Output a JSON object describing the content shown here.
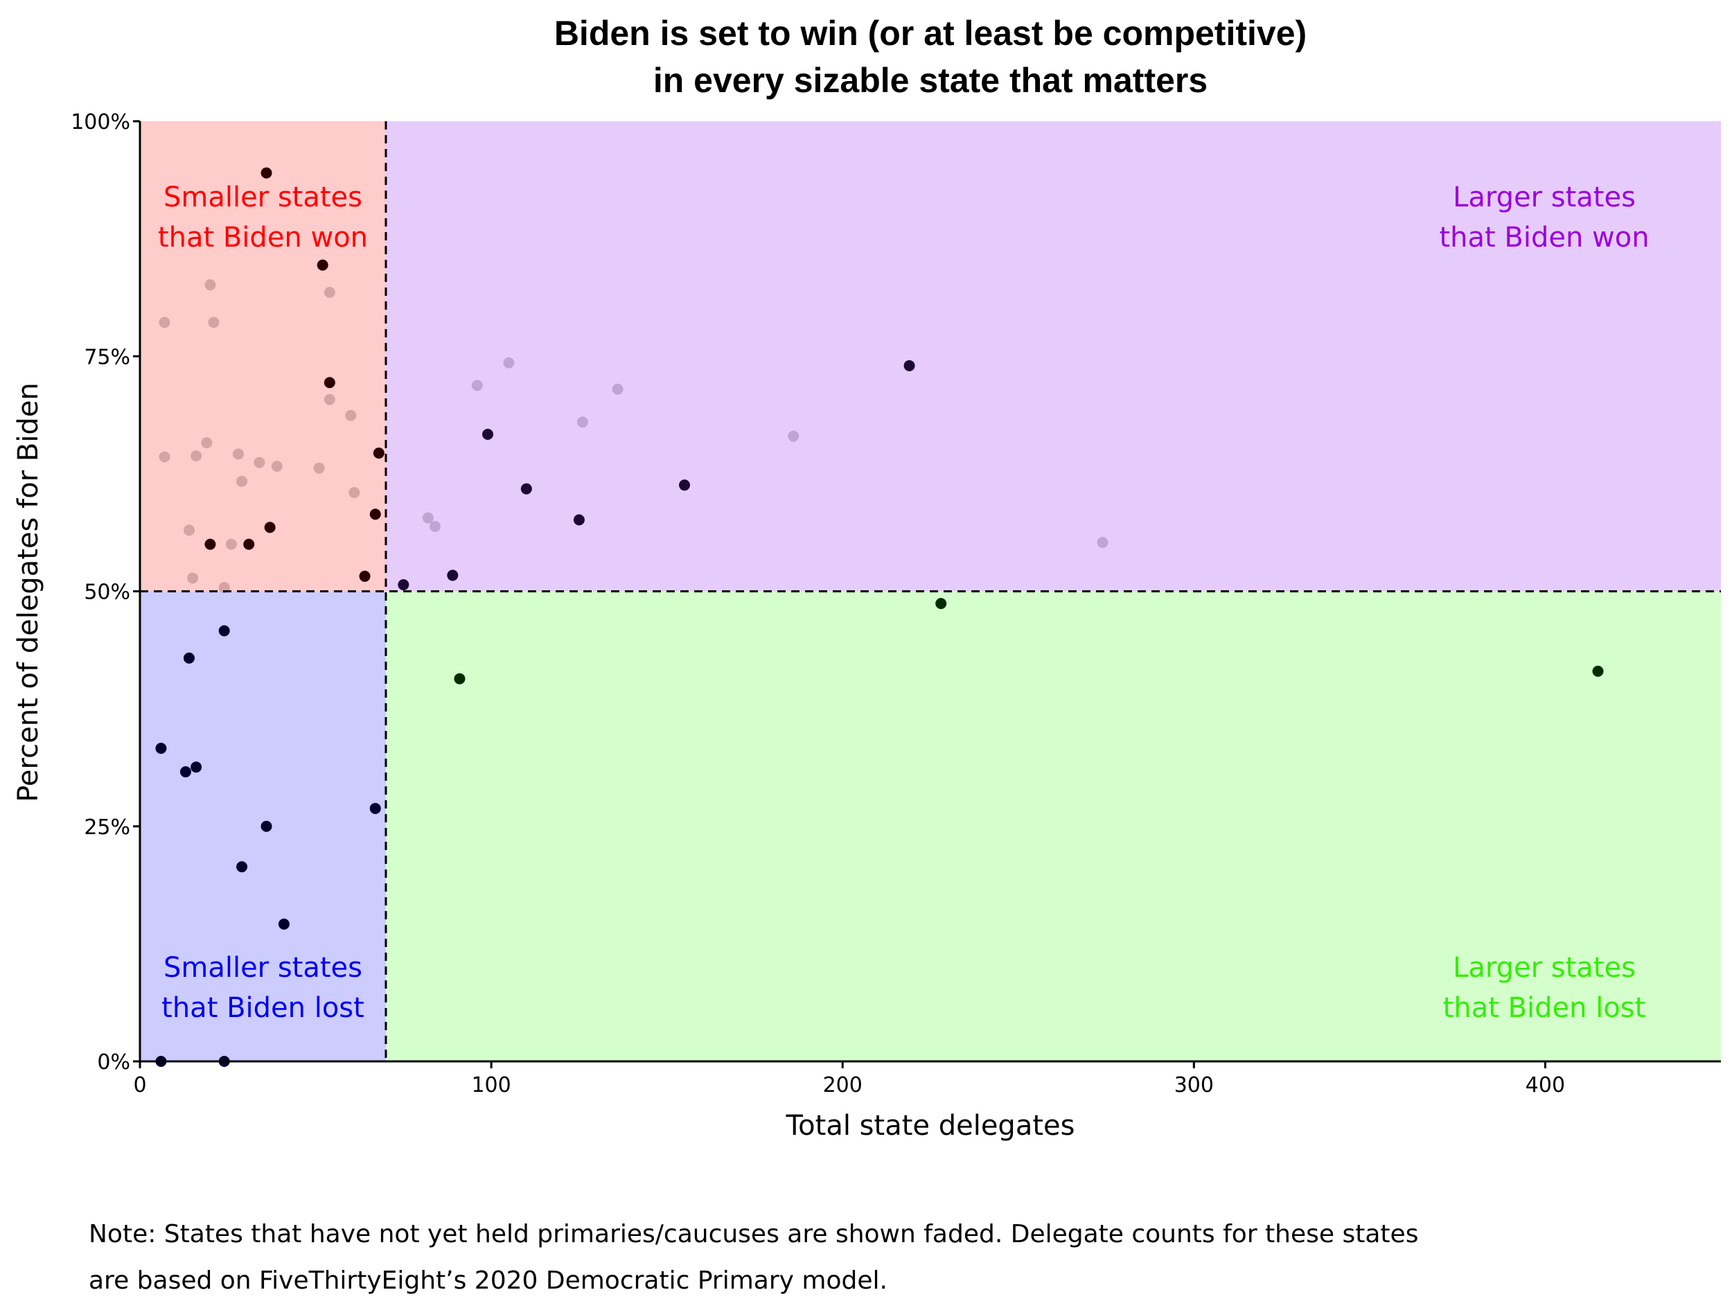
{
  "chart_data": {
    "type": "scatter",
    "title_lines": [
      "Biden is set to win (or at least be competitive)",
      "in every sizable state that matters"
    ],
    "xlabel": "Total state delegates",
    "ylabel": "Percent of delegates for Biden",
    "xlim": [
      0,
      450
    ],
    "ylim": [
      0,
      100
    ],
    "x_ticks": [
      0,
      100,
      200,
      300,
      400
    ],
    "x_tick_labels": [
      "0",
      "100",
      "200",
      "300",
      "400"
    ],
    "y_ticks": [
      0,
      25,
      50,
      75,
      100
    ],
    "y_tick_labels": [
      "0%",
      "25%",
      "50%",
      "75%",
      "100%"
    ],
    "grid": false,
    "thresholds": {
      "x": 70,
      "y": 50
    },
    "quadrants": [
      {
        "name": "smaller-won",
        "label_lines": [
          "Smaller states",
          "that Biden won"
        ],
        "fill": "#ffcccc",
        "text_color": "#ff0000"
      },
      {
        "name": "larger-won",
        "label_lines": [
          "Larger states",
          "that Biden won"
        ],
        "fill": "#e6ccfa",
        "text_color": "#9900dd"
      },
      {
        "name": "smaller-lost",
        "label_lines": [
          "Smaller states",
          "that Biden lost"
        ],
        "fill": "#ccccff",
        "text_color": "#0000ee"
      },
      {
        "name": "larger-lost",
        "label_lines": [
          "Larger states",
          "that Biden lost"
        ],
        "fill": "#d4ffcc",
        "text_color": "#33ee00"
      }
    ],
    "series": [
      {
        "status": "held",
        "points": [
          {
            "x": 36,
            "y": 94.5
          },
          {
            "x": 52,
            "y": 84.7
          },
          {
            "x": 54,
            "y": 72.2
          },
          {
            "x": 68,
            "y": 64.7
          },
          {
            "x": 67,
            "y": 58.2
          },
          {
            "x": 37,
            "y": 56.8
          },
          {
            "x": 20,
            "y": 55.0
          },
          {
            "x": 31,
            "y": 55.0
          },
          {
            "x": 64,
            "y": 51.6
          },
          {
            "x": 219,
            "y": 74.0
          },
          {
            "x": 99,
            "y": 66.7
          },
          {
            "x": 155,
            "y": 61.3
          },
          {
            "x": 110,
            "y": 60.9
          },
          {
            "x": 125,
            "y": 57.6
          },
          {
            "x": 89,
            "y": 51.7
          },
          {
            "x": 75,
            "y": 50.7
          },
          {
            "x": 228,
            "y": 48.7
          },
          {
            "x": 91,
            "y": 40.7
          },
          {
            "x": 415,
            "y": 41.5
          },
          {
            "x": 24,
            "y": 45.8
          },
          {
            "x": 14,
            "y": 42.9
          },
          {
            "x": 6,
            "y": 33.3
          },
          {
            "x": 16,
            "y": 31.3
          },
          {
            "x": 13,
            "y": 30.8
          },
          {
            "x": 67,
            "y": 26.9
          },
          {
            "x": 36,
            "y": 25.0
          },
          {
            "x": 29,
            "y": 20.7
          },
          {
            "x": 41,
            "y": 14.6
          },
          {
            "x": 6,
            "y": 0.0
          },
          {
            "x": 24,
            "y": 0.0
          }
        ]
      },
      {
        "status": "not yet held",
        "points": [
          {
            "x": 7,
            "y": 78.6
          },
          {
            "x": 20,
            "y": 82.6
          },
          {
            "x": 21,
            "y": 78.6
          },
          {
            "x": 54,
            "y": 81.8
          },
          {
            "x": 54,
            "y": 70.4
          },
          {
            "x": 60,
            "y": 68.7
          },
          {
            "x": 7,
            "y": 64.3
          },
          {
            "x": 16,
            "y": 64.4
          },
          {
            "x": 19,
            "y": 65.8
          },
          {
            "x": 28,
            "y": 64.6
          },
          {
            "x": 34,
            "y": 63.7
          },
          {
            "x": 39,
            "y": 63.3
          },
          {
            "x": 51,
            "y": 63.1
          },
          {
            "x": 29,
            "y": 61.7
          },
          {
            "x": 61,
            "y": 60.5
          },
          {
            "x": 14,
            "y": 56.5
          },
          {
            "x": 26,
            "y": 55.0
          },
          {
            "x": 15,
            "y": 51.4
          },
          {
            "x": 24,
            "y": 50.4
          },
          {
            "x": 96,
            "y": 71.9
          },
          {
            "x": 105,
            "y": 74.3
          },
          {
            "x": 136,
            "y": 71.5
          },
          {
            "x": 126,
            "y": 68.0
          },
          {
            "x": 186,
            "y": 66.5
          },
          {
            "x": 82,
            "y": 57.8
          },
          {
            "x": 84,
            "y": 56.9
          },
          {
            "x": 274,
            "y": 55.2
          }
        ]
      }
    ],
    "note_lines": [
      "Note: States that have not yet held primaries/caucuses are shown faded. Delegate counts for these states",
      "are based on FiveThirtyEight’s 2020 Democratic Primary model."
    ]
  }
}
